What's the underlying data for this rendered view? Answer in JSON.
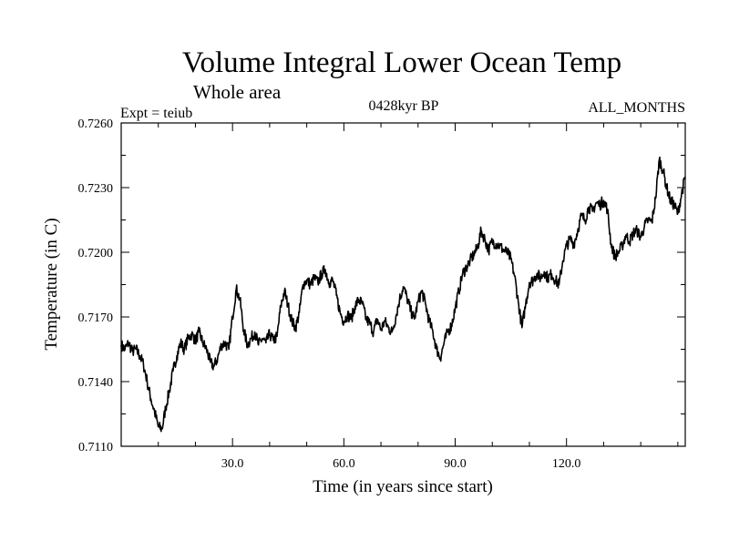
{
  "chart_data": {
    "type": "line",
    "title": "Volume Integral Lower Ocean Temp",
    "subtitle": "Whole area",
    "expt_label": "Expt = teiub",
    "period_label": "0428kyr BP",
    "months_label": "ALL_MONTHS",
    "xlabel": "Time (in years since start)",
    "ylabel": "Temperature (in C)",
    "xlim": [
      0,
      152
    ],
    "ylim": [
      0.711,
      0.726
    ],
    "x_ticks": [
      30,
      60,
      90,
      120
    ],
    "x_tick_labels": [
      "30.0",
      "60.0",
      "90.0",
      "120.0"
    ],
    "y_ticks": [
      0.711,
      0.714,
      0.717,
      0.72,
      0.723,
      0.726
    ],
    "y_tick_labels": [
      "0.7110",
      "0.7140",
      "0.7170",
      "0.7200",
      "0.7230",
      "0.7260"
    ],
    "grid": false,
    "series": [
      {
        "name": "Volume Integral Lower Ocean Temp",
        "color": "#000000",
        "x": [
          0,
          1,
          2,
          3,
          4,
          5,
          6,
          7,
          8,
          9,
          10,
          11,
          12,
          13,
          14,
          15,
          16,
          17,
          18,
          19,
          20,
          21,
          22,
          23,
          24,
          25,
          26,
          27,
          28,
          29,
          30,
          31,
          32,
          33,
          34,
          35,
          36,
          37,
          38,
          39,
          40,
          41,
          42,
          43,
          44,
          45,
          46,
          47,
          48,
          49,
          50,
          51,
          52,
          53,
          54,
          55,
          56,
          57,
          58,
          59,
          60,
          61,
          62,
          63,
          64,
          65,
          66,
          67,
          68,
          69,
          70,
          71,
          72,
          73,
          74,
          75,
          76,
          77,
          78,
          79,
          80,
          81,
          82,
          83,
          84,
          85,
          86,
          87,
          88,
          89,
          90,
          91,
          92,
          93,
          94,
          95,
          96,
          97,
          98,
          99,
          100,
          101,
          102,
          103,
          104,
          105,
          106,
          107,
          108,
          109,
          110,
          111,
          112,
          113,
          114,
          115,
          116,
          117,
          118,
          119,
          120,
          121,
          122,
          123,
          124,
          125,
          126,
          127,
          128,
          129,
          130,
          131,
          132,
          133,
          134,
          135,
          136,
          137,
          138,
          139,
          140,
          141,
          142,
          143,
          144,
          145,
          146,
          147,
          148,
          149,
          150,
          151,
          152
        ],
        "values": [
          0.7157,
          0.7155,
          0.7158,
          0.7154,
          0.7155,
          0.7152,
          0.7148,
          0.714,
          0.7132,
          0.7126,
          0.7119,
          0.7118,
          0.7128,
          0.7136,
          0.7145,
          0.7152,
          0.7158,
          0.7155,
          0.716,
          0.7162,
          0.7159,
          0.7163,
          0.7158,
          0.7155,
          0.7149,
          0.7147,
          0.7151,
          0.7157,
          0.7158,
          0.7155,
          0.717,
          0.7183,
          0.7178,
          0.7164,
          0.7157,
          0.716,
          0.7163,
          0.7157,
          0.716,
          0.7158,
          0.7162,
          0.7159,
          0.7161,
          0.7175,
          0.7182,
          0.7175,
          0.7168,
          0.7165,
          0.7172,
          0.7185,
          0.7187,
          0.7185,
          0.7188,
          0.7186,
          0.719,
          0.7192,
          0.7186,
          0.7187,
          0.718,
          0.7172,
          0.7168,
          0.7171,
          0.7169,
          0.7175,
          0.7178,
          0.7176,
          0.7169,
          0.7167,
          0.7163,
          0.7169,
          0.7164,
          0.7168,
          0.7165,
          0.7163,
          0.717,
          0.7178,
          0.7184,
          0.7179,
          0.7173,
          0.7169,
          0.7177,
          0.7182,
          0.7176,
          0.7168,
          0.7163,
          0.7155,
          0.7151,
          0.7158,
          0.7163,
          0.7166,
          0.7174,
          0.7182,
          0.719,
          0.7193,
          0.7196,
          0.7199,
          0.7202,
          0.721,
          0.7206,
          0.7201,
          0.7205,
          0.7204,
          0.7203,
          0.7201,
          0.72,
          0.7197,
          0.7189,
          0.7177,
          0.7165,
          0.7176,
          0.7186,
          0.7187,
          0.719,
          0.7188,
          0.7191,
          0.7188,
          0.719,
          0.7187,
          0.7185,
          0.7196,
          0.7203,
          0.7206,
          0.7204,
          0.721,
          0.7217,
          0.7215,
          0.7221,
          0.7219,
          0.7223,
          0.7222,
          0.7224,
          0.722,
          0.7204,
          0.7198,
          0.72,
          0.7203,
          0.7208,
          0.7205,
          0.7209,
          0.721,
          0.7207,
          0.7212,
          0.7215,
          0.7214,
          0.7225,
          0.7243,
          0.7238,
          0.723,
          0.7224,
          0.7222,
          0.7218,
          0.7227,
          0.7235
        ]
      }
    ]
  }
}
